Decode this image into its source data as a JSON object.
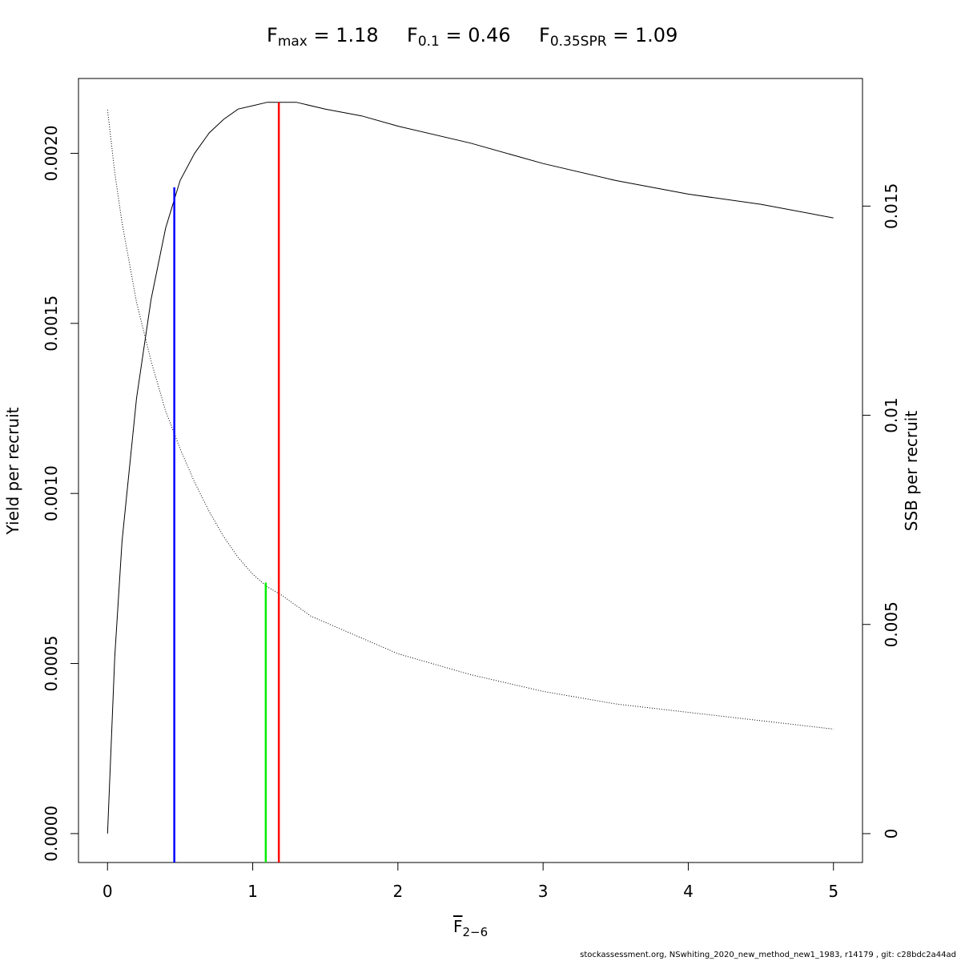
{
  "title": {
    "fmax": {
      "sym": "F",
      "sub": "max",
      "eq": " = 1.18"
    },
    "f01": {
      "sym": "F",
      "sub": "0.1",
      "eq": " = 0.46"
    },
    "fspr": {
      "sym": "F",
      "sub": "0.35SPR",
      "eq": " = 1.09"
    }
  },
  "xlabel": {
    "sym": "F",
    "sub": "2−6"
  },
  "footer": "stockassessment.org, NSwhiting_2020_new_method_new1_1983, r14179 , git: c28bdc2a44ad",
  "chart_data": {
    "type": "line",
    "xlim": [
      -0.2,
      5.2
    ],
    "ylim_left": [
      -8.5e-05,
      0.00222
    ],
    "ylim_right": [
      -0.00069,
      0.01805
    ],
    "x_ticks": [
      0,
      1,
      2,
      3,
      4,
      5
    ],
    "y_ticks_left": [
      "0.0000",
      "0.0005",
      "0.0010",
      "0.0015",
      "0.0020"
    ],
    "y_ticks_right": [
      "0",
      "0.005",
      "0.01",
      "0.015"
    ],
    "ylabel_left": "Yield per recruit",
    "ylabel_right": "SSB per recruit",
    "series": [
      {
        "axis": "left",
        "style": "solid",
        "color": "#000000",
        "x": [
          0,
          0.05,
          0.1,
          0.2,
          0.3,
          0.4,
          0.5,
          0.6,
          0.7,
          0.8,
          0.9,
          1.0,
          1.1,
          1.18,
          1.3,
          1.5,
          1.75,
          2.0,
          2.5,
          3.0,
          3.5,
          4.0,
          4.5,
          5.0
        ],
        "y": [
          0,
          0.00052,
          0.00086,
          0.00128,
          0.00157,
          0.00178,
          0.00192,
          0.002,
          0.00206,
          0.0021,
          0.00213,
          0.00214,
          0.00215,
          0.00215,
          0.00215,
          0.00213,
          0.00211,
          0.00208,
          0.00203,
          0.00197,
          0.00192,
          0.00188,
          0.00185,
          0.00181
        ]
      },
      {
        "axis": "right",
        "style": "dotted",
        "color": "#000000",
        "x": [
          0,
          0.05,
          0.1,
          0.2,
          0.3,
          0.4,
          0.5,
          0.6,
          0.7,
          0.8,
          0.9,
          1.0,
          1.1,
          1.2,
          1.4,
          1.6,
          1.8,
          2.0,
          2.5,
          3.0,
          3.5,
          4.0,
          4.5,
          5.0
        ],
        "y": [
          0.0173,
          0.0158,
          0.0146,
          0.0127,
          0.0113,
          0.0101,
          0.0092,
          0.0084,
          0.0077,
          0.0071,
          0.0066,
          0.0062,
          0.0059,
          0.0057,
          0.0052,
          0.0049,
          0.0046,
          0.0043,
          0.0038,
          0.0034,
          0.0031,
          0.0029,
          0.0027,
          0.0025
        ]
      }
    ],
    "ref_lines": [
      {
        "name": "F0.1",
        "x": 0.46,
        "y_top": 0.0019,
        "color": "#0000ff"
      },
      {
        "name": "F0.35SPR",
        "x": 1.09,
        "y_top_right": 0.006,
        "color": "#00ee00"
      },
      {
        "name": "Fmax",
        "x": 1.18,
        "y_top": 0.00215,
        "color": "#ff0000"
      }
    ]
  }
}
